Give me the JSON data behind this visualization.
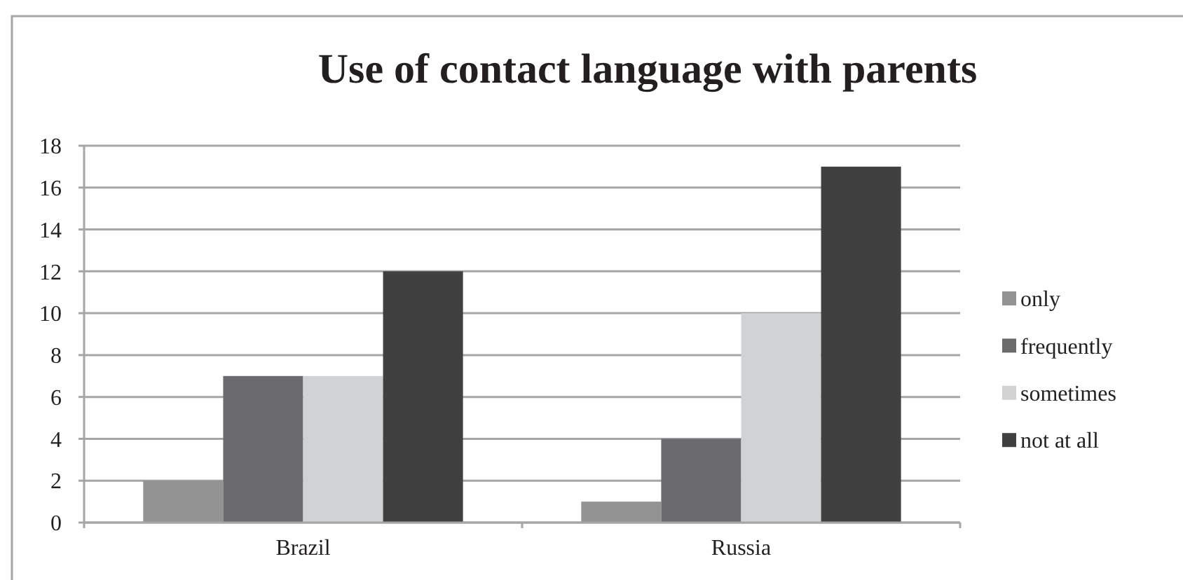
{
  "chart_data": {
    "type": "bar",
    "title": "Use of contact language with parents",
    "categories": [
      "Brazil",
      "Russia"
    ],
    "series": [
      {
        "name": "only",
        "color": "#939393",
        "values": [
          2,
          1
        ]
      },
      {
        "name": "frequently",
        "color": "#6b6b6e",
        "values": [
          7,
          4
        ]
      },
      {
        "name": "sometimes",
        "color": "#d1d2d3",
        "values": [
          7,
          10
        ]
      },
      {
        "name": "not at all",
        "color": "#404040",
        "values": [
          12,
          17
        ]
      }
    ],
    "ylim": [
      0,
      18
    ],
    "yticks": [
      0,
      2,
      4,
      6,
      8,
      10,
      12,
      14,
      16,
      18
    ],
    "grid": "y",
    "legend": "right"
  }
}
